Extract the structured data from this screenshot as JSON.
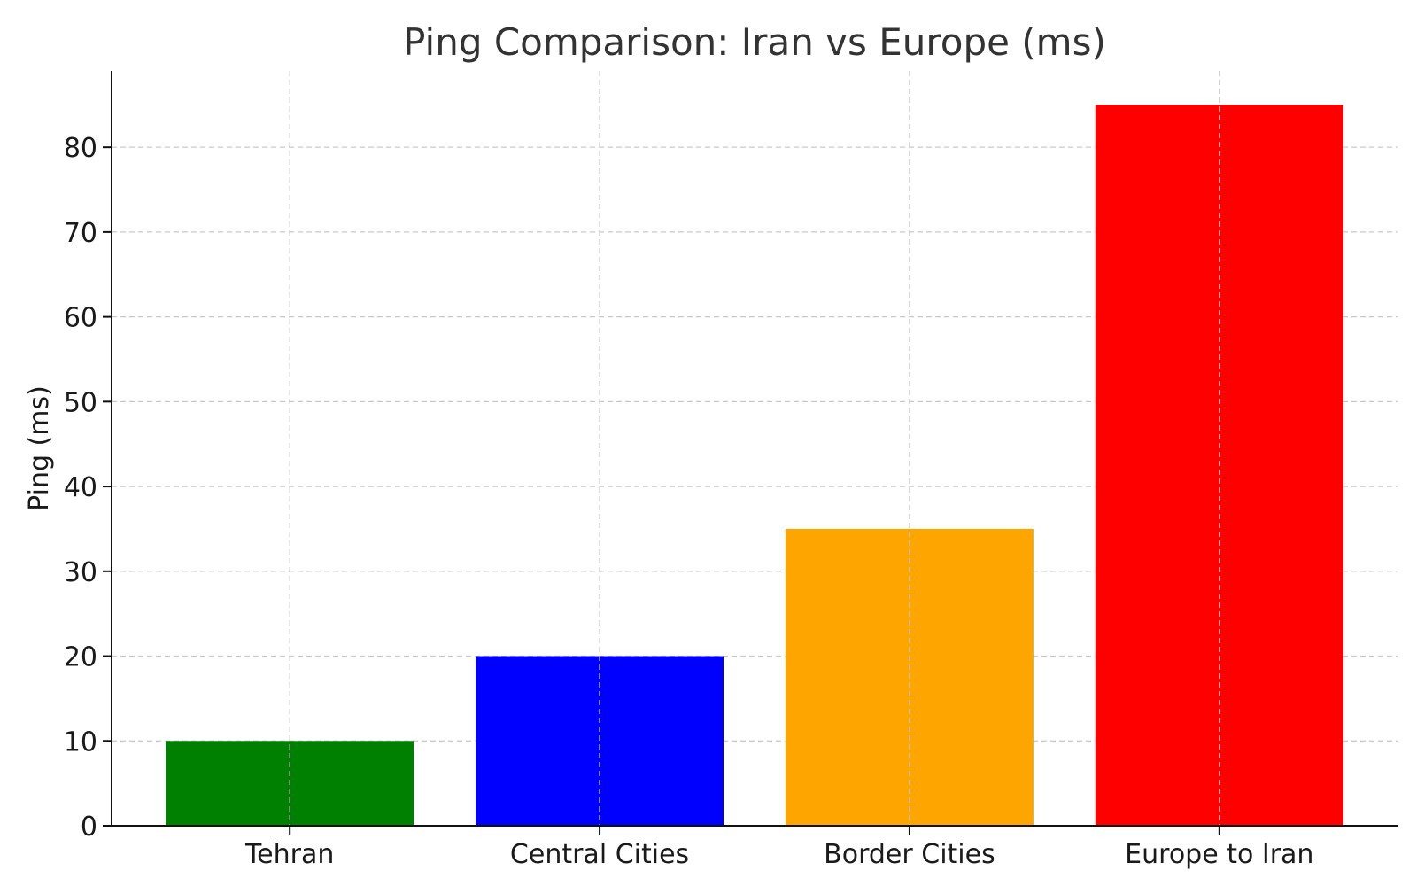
{
  "chart_data": {
    "type": "bar",
    "title": "Ping Comparison: Iran vs Europe (ms)",
    "xlabel": "",
    "ylabel": "Ping (ms)",
    "categories": [
      "Tehran",
      "Central Cities",
      "Border Cities",
      "Europe to Iran"
    ],
    "values": [
      10,
      20,
      35,
      85
    ],
    "colors": [
      "#008000",
      "#0000ff",
      "#ffa500",
      "#ff0000"
    ],
    "ylim": [
      0,
      89
    ],
    "yticks": [
      0,
      10,
      20,
      30,
      40,
      50,
      60,
      70,
      80
    ],
    "grid": true,
    "legend": "none"
  }
}
